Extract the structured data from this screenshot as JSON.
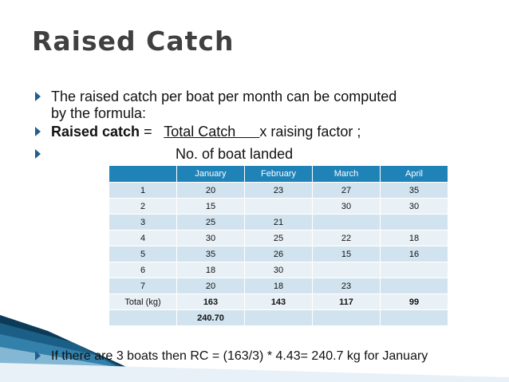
{
  "title": "Raised Catch",
  "bullets": [
    {
      "line1": "The raised catch per boat per month can be computed",
      "line2": "by the formula:"
    },
    {
      "bold": "Raised catch",
      "eq": " =   ",
      "underlined": "Total Catch      ",
      "rest": "x raising factor ;"
    },
    {
      "text": "No. of boat landed"
    }
  ],
  "table": {
    "headers": [
      "",
      "January",
      "February",
      "March",
      "April"
    ],
    "rows": [
      [
        "1",
        "20",
        "23",
        "27",
        "35"
      ],
      [
        "2",
        "15",
        "",
        "30",
        "30"
      ],
      [
        "3",
        "25",
        "21",
        "",
        ""
      ],
      [
        "4",
        "30",
        "25",
        "22",
        "18"
      ],
      [
        "5",
        "35",
        "26",
        "15",
        "16"
      ],
      [
        "6",
        "18",
        "30",
        "",
        ""
      ],
      [
        "7",
        "20",
        "18",
        "23",
        ""
      ],
      [
        "Total (kg)",
        "163",
        "143",
        "117",
        "99"
      ],
      [
        "",
        "240.70",
        "",
        "",
        ""
      ]
    ]
  },
  "footer": "If there are 3 boats then RC = (163/3) * 4.43= 240.7 kg for January",
  "colors": {
    "accent": "#1f83b8",
    "title": "#404040",
    "row_dark": "#d1e3ee",
    "row_light": "#e9f1f7"
  }
}
